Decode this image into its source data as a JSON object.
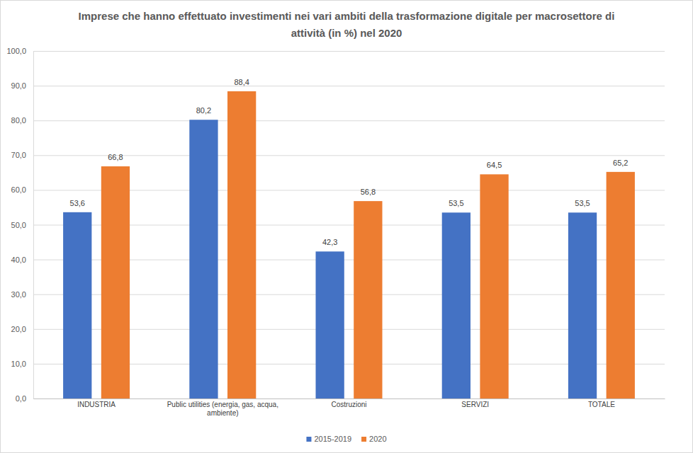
{
  "chart_data": {
    "type": "bar",
    "title": "Imprese che hanno effettuato investimenti nei vari ambiti della trasformazione digitale per macrosettore di attività (in %) nel 2020",
    "categories": [
      "INDUSTRIA",
      "Public utilities (energia, gas, acqua, ambiente)",
      "Costruzioni",
      "SERVIZI",
      "TOTALE"
    ],
    "series": [
      {
        "name": "2015-2019",
        "color": "#4472c4",
        "values": [
          53.6,
          80.2,
          42.3,
          53.5,
          53.5
        ],
        "value_labels": [
          "53,6",
          "80,2",
          "42,3",
          "53,5",
          "53,5"
        ]
      },
      {
        "name": "2020",
        "color": "#ed7d31",
        "values": [
          66.8,
          88.4,
          56.8,
          64.5,
          65.2
        ],
        "value_labels": [
          "66,8",
          "88,4",
          "56,8",
          "64,5",
          "65,2"
        ]
      }
    ],
    "ylim": [
      0,
      100
    ],
    "yticks": [
      {
        "value": 0,
        "label": "0,0"
      },
      {
        "value": 10,
        "label": "10,0"
      },
      {
        "value": 20,
        "label": "20,0"
      },
      {
        "value": 30,
        "label": "30,0"
      },
      {
        "value": 40,
        "label": "40,0"
      },
      {
        "value": 50,
        "label": "50,0"
      },
      {
        "value": 60,
        "label": "60,0"
      },
      {
        "value": 70,
        "label": "70,0"
      },
      {
        "value": 80,
        "label": "80,0"
      },
      {
        "value": 90,
        "label": "90,0"
      },
      {
        "value": 100,
        "label": "100,0"
      }
    ],
    "grid": true,
    "legend": "bottom",
    "data_labels": true
  }
}
